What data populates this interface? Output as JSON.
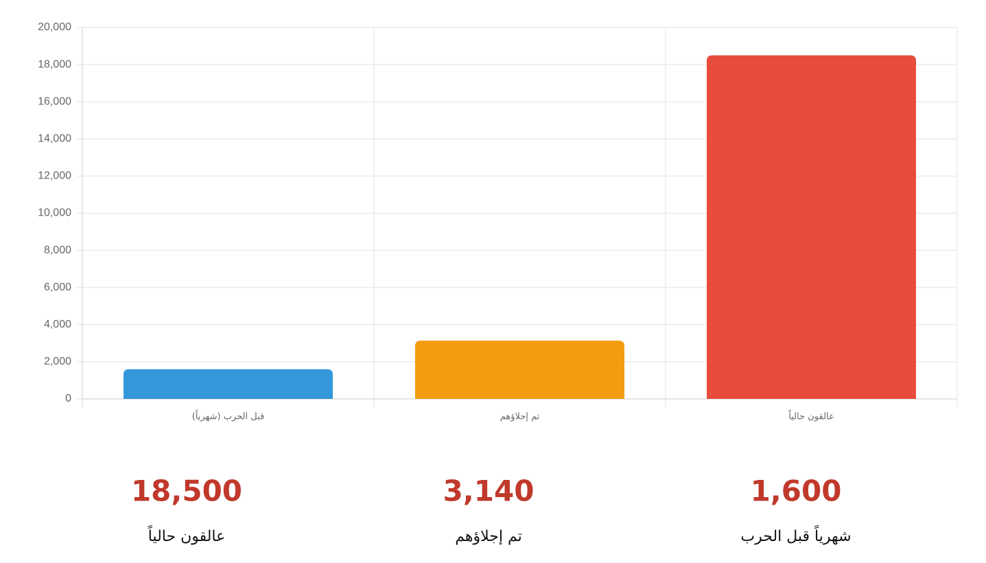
{
  "chart_data": {
    "type": "bar",
    "categories": [
      "قبل الحرب (شهرياً)",
      "تم إجلاؤهم",
      "عالقون حالياً"
    ],
    "values": [
      1600,
      3140,
      18500
    ],
    "colors": [
      "#3498db",
      "#f39c12",
      "#e74c3c"
    ],
    "ylim": [
      0,
      20000
    ],
    "yticks": [
      0,
      {
        "value": 2000,
        "label": "2,000"
      },
      {
        "value": 4000,
        "label": "4,000"
      },
      {
        "value": 6000,
        "label": "6,000"
      },
      {
        "value": 8000,
        "label": "8,000"
      },
      {
        "value": 10000,
        "label": "10,000"
      },
      {
        "value": 12000,
        "label": "12,000"
      },
      {
        "value": 14000,
        "label": "14,000"
      },
      {
        "value": 16000,
        "label": "16,000"
      },
      {
        "value": 18000,
        "label": "18,000"
      },
      {
        "value": 20000,
        "label": "20,000"
      }
    ],
    "grid": true
  },
  "stats": [
    {
      "value": "18,500",
      "label": "عالقون حالياً"
    },
    {
      "value": "3,140",
      "label": "تم إجلاؤهم"
    },
    {
      "value": "1,600",
      "label": "شهرياً قبل الحرب"
    }
  ]
}
